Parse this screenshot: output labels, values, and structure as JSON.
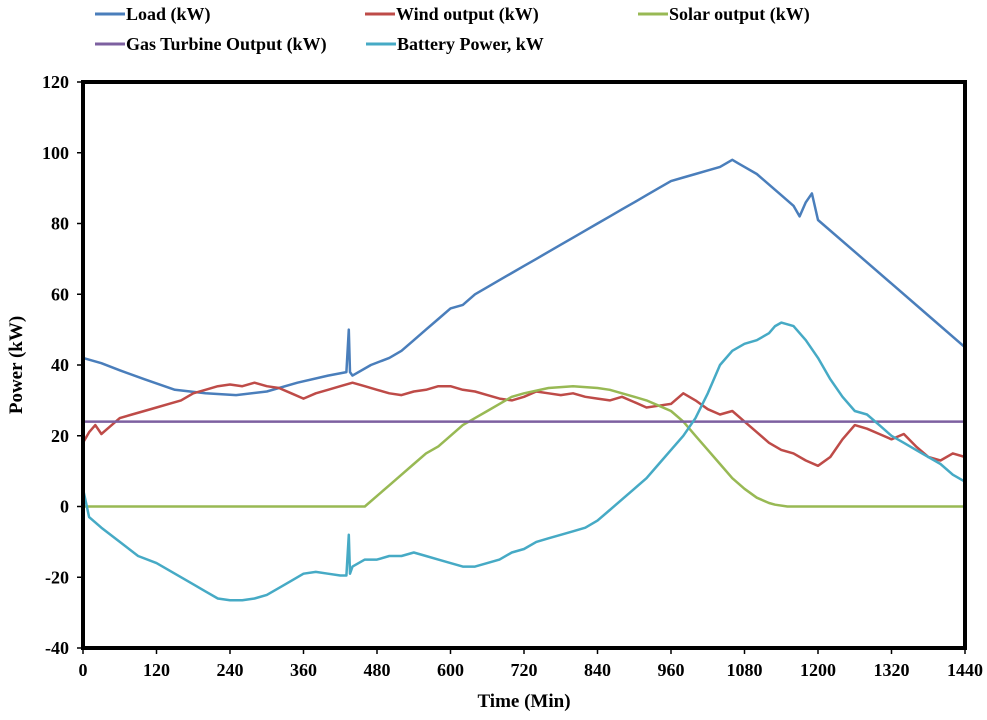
{
  "chart_data": {
    "type": "line",
    "title": "",
    "xlabel": "Time (Min)",
    "ylabel": "Power (kW)",
    "xlim": [
      0,
      1440
    ],
    "ylim": [
      -40,
      120
    ],
    "xticks": [
      0,
      120,
      240,
      360,
      480,
      600,
      720,
      840,
      960,
      1080,
      1200,
      1320,
      1440
    ],
    "yticks": [
      -40,
      -20,
      0,
      20,
      40,
      60,
      80,
      100,
      120
    ],
    "grid": false,
    "legend_position": "top",
    "series": [
      {
        "name": "Load (kW)",
        "color": "#4a7ebb",
        "x": [
          0,
          30,
          60,
          100,
          150,
          200,
          250,
          300,
          350,
          400,
          430,
          434,
          436,
          440,
          470,
          500,
          520,
          540,
          560,
          580,
          600,
          620,
          640,
          660,
          680,
          700,
          720,
          740,
          760,
          780,
          800,
          820,
          840,
          860,
          880,
          900,
          920,
          940,
          960,
          980,
          1000,
          1020,
          1040,
          1060,
          1070,
          1080,
          1100,
          1120,
          1140,
          1160,
          1170,
          1180,
          1190,
          1200,
          1260,
          1320,
          1380,
          1440
        ],
        "y": [
          42,
          40.5,
          38.5,
          36,
          33,
          32,
          31.5,
          32.5,
          35,
          37,
          38,
          50,
          38,
          37,
          40,
          42,
          44,
          47,
          50,
          53,
          56,
          57,
          60,
          62,
          64,
          66,
          68,
          70,
          72,
          74,
          76,
          78,
          80,
          82,
          84,
          86,
          88,
          90,
          92,
          93,
          94,
          95,
          96,
          98,
          97,
          96,
          94,
          91,
          88,
          85,
          82,
          86,
          88.5,
          81,
          72,
          63,
          54,
          45
        ]
      },
      {
        "name": "Wind output (kW)",
        "color": "#be4b48",
        "x": [
          0,
          10,
          20,
          30,
          40,
          60,
          80,
          100,
          120,
          140,
          160,
          180,
          200,
          220,
          240,
          260,
          280,
          300,
          320,
          340,
          360,
          380,
          400,
          420,
          440,
          460,
          480,
          500,
          520,
          540,
          560,
          580,
          600,
          620,
          640,
          660,
          680,
          700,
          720,
          740,
          760,
          780,
          800,
          820,
          840,
          860,
          880,
          900,
          920,
          940,
          960,
          980,
          1000,
          1020,
          1040,
          1060,
          1080,
          1100,
          1120,
          1140,
          1160,
          1180,
          1200,
          1220,
          1240,
          1260,
          1280,
          1300,
          1320,
          1340,
          1360,
          1380,
          1400,
          1420,
          1440
        ],
        "y": [
          18,
          21,
          23,
          20.5,
          22,
          25,
          26,
          27,
          28,
          29,
          30,
          32,
          33,
          34,
          34.5,
          34,
          35,
          34,
          33.5,
          32,
          30.5,
          32,
          33,
          34,
          35,
          34,
          33,
          32,
          31.5,
          32.5,
          33,
          34,
          34,
          33,
          32.5,
          31.5,
          30.5,
          30,
          31,
          32.5,
          32,
          31.5,
          32,
          31,
          30.5,
          30,
          31,
          29.5,
          28,
          28.5,
          29,
          32,
          30,
          27.5,
          26,
          27,
          24,
          21,
          18,
          16,
          15,
          13,
          11.5,
          14,
          19,
          23,
          22,
          20.5,
          19,
          20.5,
          17,
          14,
          13,
          15,
          14
        ]
      },
      {
        "name": "Solar output (kW)",
        "color": "#98b954",
        "x": [
          0,
          100,
          200,
          300,
          400,
          460,
          480,
          500,
          520,
          540,
          560,
          580,
          600,
          620,
          640,
          660,
          680,
          700,
          720,
          760,
          800,
          840,
          860,
          880,
          900,
          920,
          940,
          960,
          980,
          1000,
          1020,
          1040,
          1060,
          1080,
          1100,
          1120,
          1130,
          1150,
          1200,
          1300,
          1440
        ],
        "y": [
          0,
          0,
          0,
          0,
          0,
          0,
          3,
          6,
          9,
          12,
          15,
          17,
          20,
          23,
          25,
          27,
          29,
          31,
          32,
          33.5,
          34,
          33.5,
          33,
          32,
          31,
          30,
          28.5,
          27,
          24,
          20,
          16,
          12,
          8,
          5,
          2.5,
          1,
          0.5,
          0,
          0,
          0,
          0
        ]
      },
      {
        "name": "Gas Turbine Output (kW)",
        "color": "#7d60a0",
        "x": [
          0,
          1440
        ],
        "y": [
          24,
          24
        ]
      },
      {
        "name": "Battery Power, kW",
        "color": "#46aac5",
        "x": [
          0,
          5,
          10,
          30,
          60,
          90,
          120,
          150,
          180,
          200,
          220,
          240,
          260,
          280,
          300,
          320,
          340,
          360,
          380,
          400,
          420,
          430,
          434,
          436,
          440,
          460,
          480,
          500,
          520,
          540,
          560,
          580,
          600,
          620,
          640,
          660,
          680,
          700,
          720,
          740,
          760,
          780,
          800,
          820,
          840,
          860,
          880,
          900,
          920,
          940,
          960,
          980,
          1000,
          1020,
          1040,
          1060,
          1080,
          1100,
          1120,
          1130,
          1140,
          1160,
          1180,
          1200,
          1220,
          1240,
          1260,
          1280,
          1300,
          1320,
          1340,
          1360,
          1380,
          1400,
          1420,
          1440
        ],
        "y": [
          5,
          1,
          -3,
          -6,
          -10,
          -14,
          -16,
          -19,
          -22,
          -24,
          -26,
          -26.5,
          -26.5,
          -26,
          -25,
          -23,
          -21,
          -19,
          -18.5,
          -19,
          -19.5,
          -19.5,
          -8,
          -19,
          -17,
          -15,
          -15,
          -14,
          -14,
          -13,
          -14,
          -15,
          -16,
          -17,
          -17,
          -16,
          -15,
          -13,
          -12,
          -10,
          -9,
          -8,
          -7,
          -6,
          -4,
          -1,
          2,
          5,
          8,
          12,
          16,
          20,
          25,
          32,
          40,
          44,
          46,
          47,
          49,
          51,
          52,
          51,
          47,
          42,
          36,
          31,
          27,
          26,
          23,
          20,
          18,
          16,
          14,
          12,
          9,
          7
        ]
      }
    ]
  }
}
